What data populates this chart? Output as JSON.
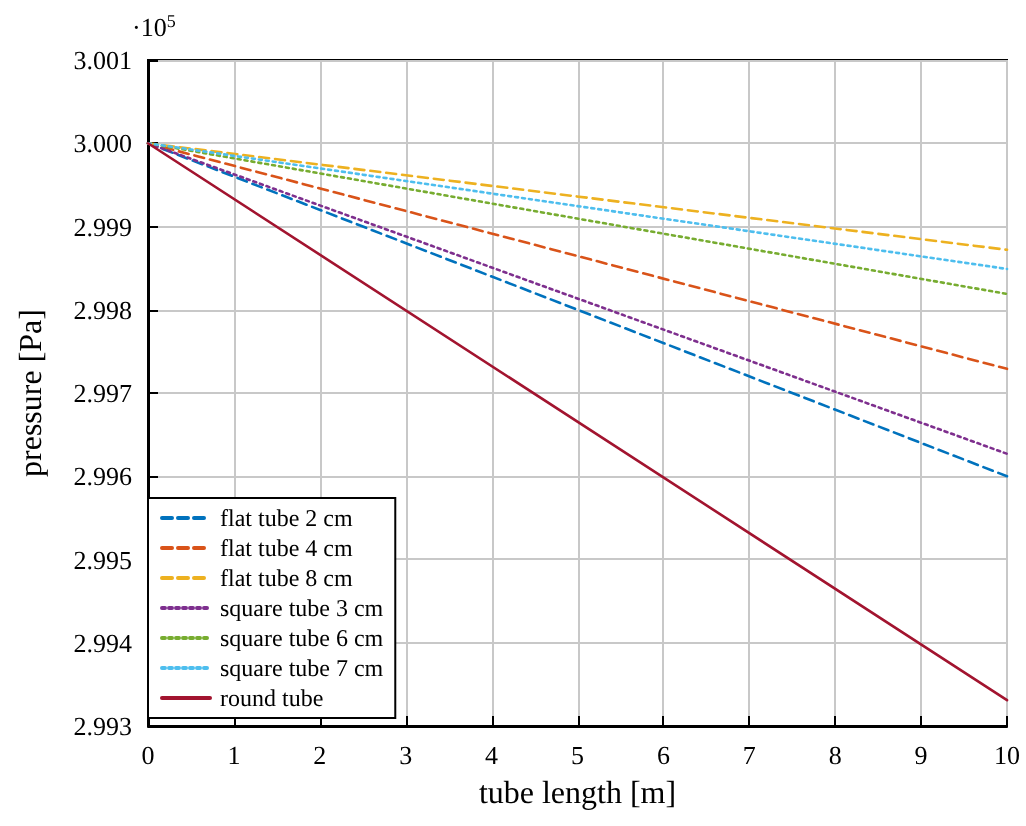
{
  "chart_data": {
    "type": "line",
    "xlabel": "tube length [m]",
    "ylabel": "pressure [Pa]",
    "annotations": [
      "·10$^{5}$"
    ],
    "x": [
      0,
      10
    ],
    "series": [
      {
        "name": "flat tube 2 cm",
        "color": "#0072bd",
        "line_style": "dashed",
        "values": [
          3.0,
          2.996
        ]
      },
      {
        "name": "flat tube 4 cm",
        "color": "#d95319",
        "line_style": "dashed",
        "values": [
          3.0,
          2.99729
        ]
      },
      {
        "name": "flat tube 8 cm",
        "color": "#edb120",
        "line_style": "dashed",
        "values": [
          3.0,
          2.99872
        ]
      },
      {
        "name": "square tube 3 cm",
        "color": "#7e2f8e",
        "line_style": "dotted",
        "values": [
          3.0,
          2.99627
        ]
      },
      {
        "name": "square tube 6 cm",
        "color": "#77ac30",
        "line_style": "dotted",
        "values": [
          3.0,
          2.99819
        ]
      },
      {
        "name": "square tube 7 cm",
        "color": "#4dbeee",
        "line_style": "dotted",
        "values": [
          3.0,
          2.99849
        ]
      },
      {
        "name": "round tube",
        "color": "#a2142f",
        "line_style": "solid",
        "values": [
          3.0,
          2.99331
        ]
      }
    ],
    "xlim": [
      0,
      10
    ],
    "xticks": [
      0,
      1,
      2,
      3,
      4,
      5,
      6,
      7,
      8,
      9,
      10
    ],
    "ylim": [
      2.993,
      3.001
    ],
    "yticks": [
      2.993,
      2.994,
      2.995,
      2.996,
      2.997,
      2.998,
      2.999,
      {
        "value": 3.0,
        "label": "3.000"
      },
      3.001
    ],
    "grid": true,
    "legend": "bottom left",
    "marker": "none"
  }
}
